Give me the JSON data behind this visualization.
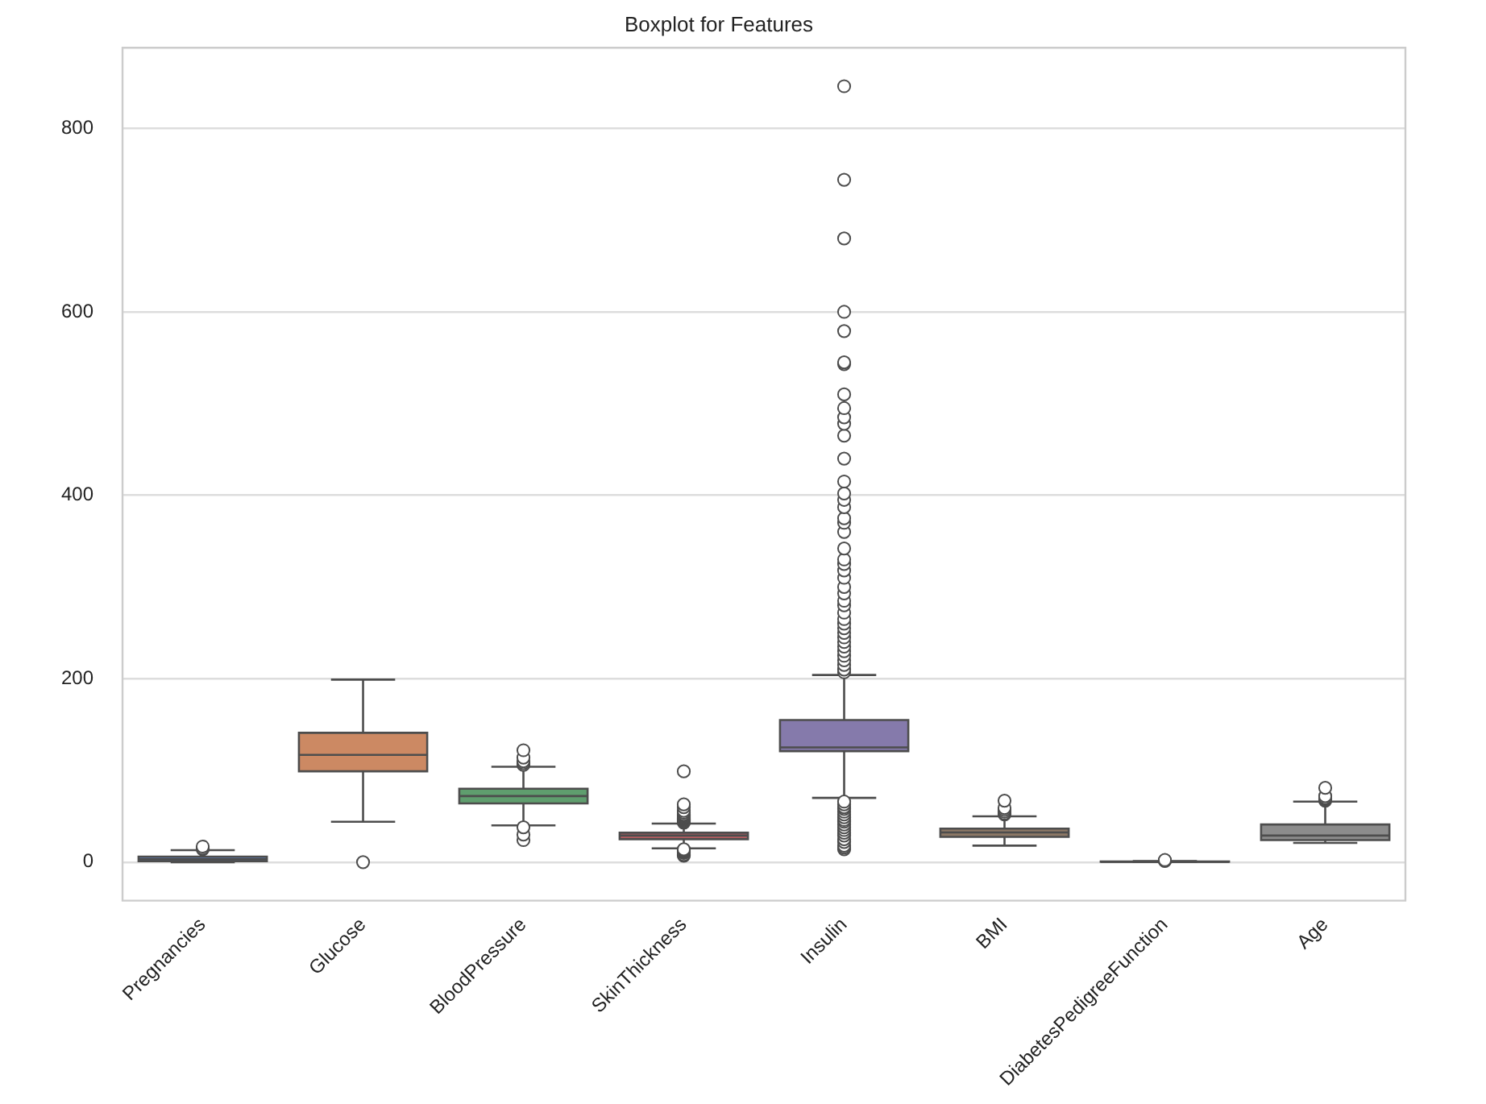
{
  "chart_data": {
    "type": "box",
    "title": "Boxplot for Features",
    "categories": [
      "Pregnancies",
      "Glucose",
      "BloodPressure",
      "SkinThickness",
      "Insulin",
      "BMI",
      "DiabetesPedigreeFunction",
      "Age"
    ],
    "colors": [
      "#5975a4",
      "#cc8963",
      "#5f9e6e",
      "#b55d60",
      "#857aab",
      "#8d7866",
      "#d095bf",
      "#8c8c8c"
    ],
    "boxes": [
      {
        "low": 0,
        "q1": 1,
        "median": 3,
        "q3": 6,
        "high": 13,
        "outliers": [
          14,
          15,
          17
        ]
      },
      {
        "low": 44,
        "q1": 99,
        "median": 117,
        "q3": 141,
        "high": 199,
        "outliers": [
          0
        ]
      },
      {
        "low": 40,
        "q1": 64,
        "median": 72,
        "q3": 80,
        "high": 104,
        "outliers": [
          24,
          30,
          38,
          106,
          108,
          110,
          114,
          122
        ]
      },
      {
        "low": 15,
        "q1": 25,
        "median": 29,
        "q3": 32,
        "high": 42,
        "outliers": [
          7,
          8,
          10,
          11,
          12,
          13,
          14,
          43,
          44,
          45,
          46,
          47,
          48,
          49,
          50,
          51,
          52,
          54,
          56,
          60,
          63,
          99
        ]
      },
      {
        "low": 70,
        "q1": 121,
        "median": 125,
        "q3": 155,
        "high": 204,
        "outliers": [
          14,
          16,
          18,
          22,
          25,
          29,
          32,
          35,
          38,
          41,
          44,
          46,
          49,
          52,
          55,
          58,
          60,
          63,
          66,
          207,
          210,
          215,
          220,
          225,
          230,
          235,
          240,
          245,
          250,
          255,
          260,
          265,
          272,
          280,
          285,
          293,
          300,
          310,
          318,
          325,
          330,
          342,
          360,
          370,
          375,
          387,
          395,
          402,
          415,
          440,
          465,
          478,
          485,
          495,
          510,
          543,
          545,
          579,
          600,
          680,
          744,
          846
        ]
      },
      {
        "low": 18,
        "q1": 27.5,
        "median": 32.3,
        "q3": 36.6,
        "high": 50,
        "outliers": [
          52,
          53,
          55,
          57,
          59,
          67
        ]
      },
      {
        "low": 0.08,
        "q1": 0.24,
        "median": 0.37,
        "q3": 0.63,
        "high": 1.19,
        "outliers": [
          1.3,
          1.6,
          1.9,
          2.3
        ]
      },
      {
        "low": 21,
        "q1": 24,
        "median": 29,
        "q3": 41,
        "high": 66,
        "outliers": [
          67,
          68,
          69,
          70,
          72,
          81
        ]
      }
    ],
    "ylim": [
      -42,
      888
    ],
    "yticks": [
      0,
      200,
      400,
      600,
      800
    ],
    "grid": "y",
    "legend": false
  }
}
